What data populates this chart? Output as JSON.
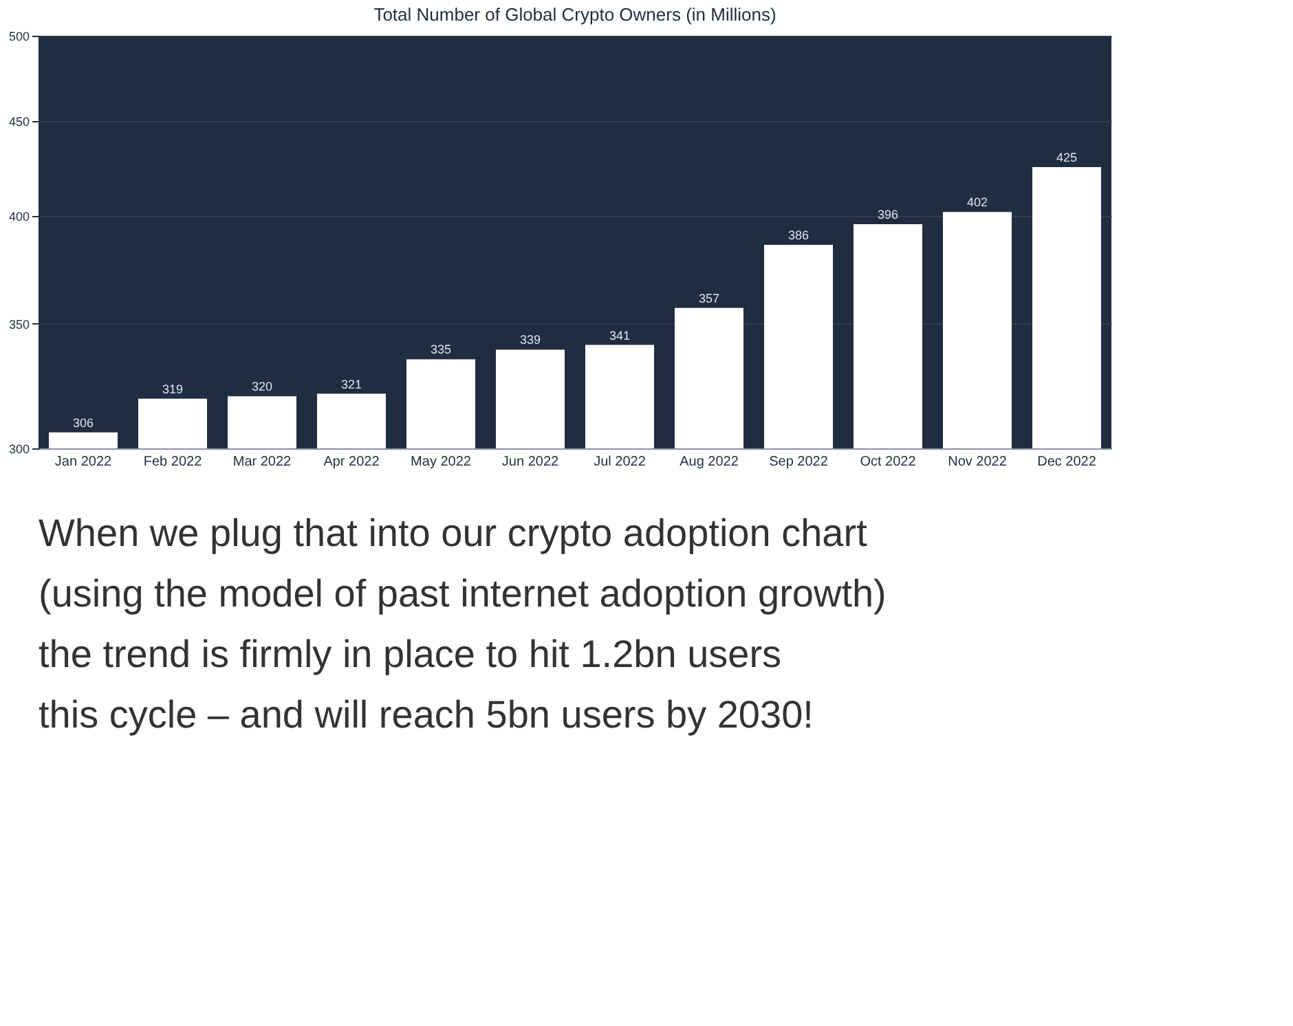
{
  "chart_data": {
    "type": "bar",
    "title": "Total Number of Global Crypto Owners (in Millions)",
    "categories": [
      "Jan 2022",
      "Feb 2022",
      "Mar 2022",
      "Apr 2022",
      "May 2022",
      "Jun 2022",
      "Jul 2022",
      "Aug 2022",
      "Sep 2022",
      "Oct 2022",
      "Nov 2022",
      "Dec 2022"
    ],
    "values": [
      306,
      319,
      320,
      321,
      335,
      339,
      341,
      357,
      386,
      396,
      402,
      425
    ],
    "color": "#ffffff",
    "ylim": [
      300,
      500
    ],
    "yticks": [
      300,
      350,
      400,
      450,
      500
    ],
    "log": true,
    "grid": "y",
    "data_labels": true,
    "annotations": [
      "When we plug that into our crypto adoption chart (using the model of past internet adoption growth) the trend is firmly in place to hit 1.2bn users this cycle – and will reach 5bn users by 2030!"
    ]
  }
}
